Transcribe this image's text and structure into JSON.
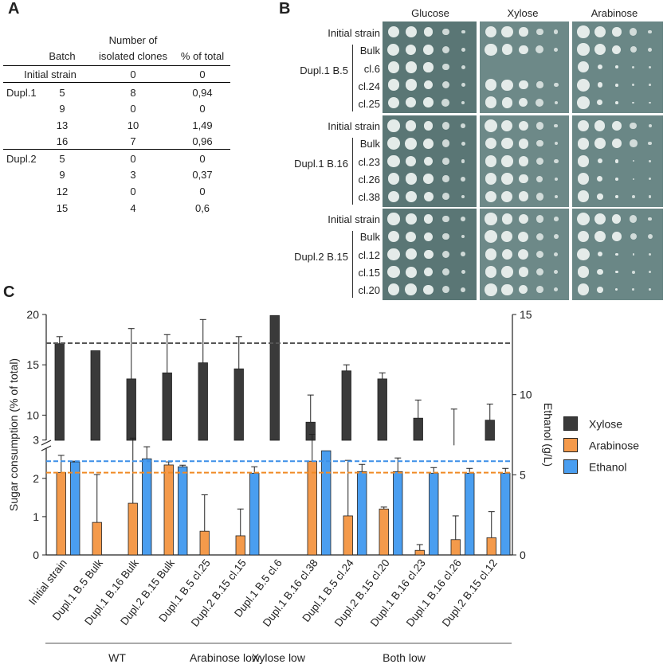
{
  "panel_letters": {
    "a": "A",
    "b": "B",
    "c": "C"
  },
  "table_a": {
    "headers": {
      "batch": "Batch",
      "clones_line1": "Number of",
      "clones_line2": "isolated clones",
      "percent": "% of total"
    },
    "initial_row": {
      "label": "Initial strain",
      "clones": "0",
      "percent": "0"
    },
    "groups": [
      {
        "name": "Dupl.1",
        "rows": [
          {
            "batch": "5",
            "clones": "8",
            "percent": "0,94"
          },
          {
            "batch": "9",
            "clones": "0",
            "percent": "0"
          },
          {
            "batch": "13",
            "clones": "10",
            "percent": "1,49"
          },
          {
            "batch": "16",
            "clones": "7",
            "percent": "0,96"
          }
        ]
      },
      {
        "name": "Dupl.2",
        "rows": [
          {
            "batch": "5",
            "clones": "0",
            "percent": "0"
          },
          {
            "batch": "9",
            "clones": "3",
            "percent": "0,37"
          },
          {
            "batch": "12",
            "clones": "0",
            "percent": "0"
          },
          {
            "batch": "15",
            "clones": "4",
            "percent": "0,6"
          }
        ]
      }
    ]
  },
  "plates_b": {
    "columns": [
      "Glucose",
      "Xylose",
      "Arabinose"
    ],
    "blocks": [
      {
        "group": "Dupl.1 B.5",
        "rows": [
          "Initial strain",
          "Bulk",
          "cl.6",
          "cl.24",
          "cl.25"
        ]
      },
      {
        "group": "Dupl.1 B.16",
        "rows": [
          "Initial strain",
          "Bulk",
          "cl.23",
          "cl.26",
          "cl.38"
        ]
      },
      {
        "group": "Dupl.2 B.15",
        "rows": [
          "Initial strain",
          "Bulk",
          "cl.12",
          "cl.15",
          "cl.20"
        ]
      }
    ]
  },
  "chart_data": {
    "type": "bar",
    "ylabel_left": "Sugar consumption (% of total)",
    "ylabel_right": "Ethanol (g/L)",
    "y_left_ticks_lower": [
      0,
      1,
      2,
      3
    ],
    "y_left_ticks_upper": [
      10,
      15,
      20
    ],
    "y_right_ticks": [
      0,
      5,
      10,
      15
    ],
    "y_right_range": [
      0,
      15
    ],
    "axis_break": "between 3.4 and 7.5",
    "categories": [
      "Initial strain",
      "Dupl.1 B.5 Bulk",
      "Dupl.1 B.16 Bulk",
      "Dupl.2 B.15 Bulk",
      "Dupl.1 B.5 cl.25",
      "Dupl.2 B.15 cl.15",
      "Dupl.1 B.5 cl.6",
      "Dupl.1 B.16 cl.38",
      "Dupl.1 B.5 cl.24",
      "Dupl.2 B.15 cl.20",
      "Dupl.1 B.16 cl.23",
      "Dupl.1 B.16 cl.26",
      "Dupl.2 B.15 cl.12"
    ],
    "series": [
      {
        "name": "Xylose",
        "axis": "left",
        "color": "#3a3a3a",
        "values": [
          17.1,
          16.4,
          13.6,
          14.2,
          15.2,
          14.6,
          19.9,
          9.3,
          14.4,
          13.6,
          9.7,
          7.0,
          9.5
        ],
        "errors": [
          0.7,
          0,
          5.0,
          3.8,
          4.3,
          3.2,
          0,
          2.7,
          0.6,
          0.6,
          1.8,
          3.6,
          1.6
        ]
      },
      {
        "name": "Arabinose",
        "axis": "left",
        "color": "#f49a4b",
        "values": [
          2.15,
          0.85,
          1.35,
          2.35,
          0.62,
          0.5,
          null,
          2.45,
          1.02,
          1.2,
          0.12,
          0.4,
          0.45
        ],
        "errors": [
          0.45,
          1.25,
          1.7,
          0.08,
          0.95,
          0.7,
          null,
          0.7,
          1.45,
          0.05,
          0.15,
          0.62,
          0.68
        ]
      },
      {
        "name": "Ethanol",
        "axis": "right",
        "color": "#4a9ef0",
        "values": [
          5.8,
          0,
          6.0,
          5.5,
          0,
          5.1,
          0,
          6.5,
          5.2,
          5.2,
          5.1,
          5.1,
          5.1
        ],
        "errors": [
          0.05,
          0,
          0.75,
          0.1,
          0,
          0.4,
          0,
          0,
          0.45,
          0.85,
          0.35,
          0.3,
          0.3
        ]
      }
    ],
    "reference_lines": [
      {
        "series": "Xylose",
        "axis": "left",
        "value": 17.15,
        "color": "#555555"
      },
      {
        "series": "Arabinose",
        "axis": "left",
        "value": 2.15,
        "color": "#f08a25"
      },
      {
        "series": "Ethanol",
        "axis": "right",
        "value": 5.85,
        "color": "#3b8fe8"
      }
    ],
    "groups": [
      {
        "label": "WT",
        "from": 0,
        "to": 3
      },
      {
        "label": "Arabinose low",
        "from": 4,
        "to": 5
      },
      {
        "label": "Xylose low",
        "from": 6,
        "to": 6
      },
      {
        "label": "Both low",
        "from": 7,
        "to": 12
      }
    ],
    "legend": [
      {
        "label": "Xylose",
        "color": "#3a3a3a"
      },
      {
        "label": "Arabinose",
        "color": "#f49a4b"
      },
      {
        "label": "Ethanol",
        "color": "#4a9ef0"
      }
    ],
    "legend_position": "right"
  }
}
